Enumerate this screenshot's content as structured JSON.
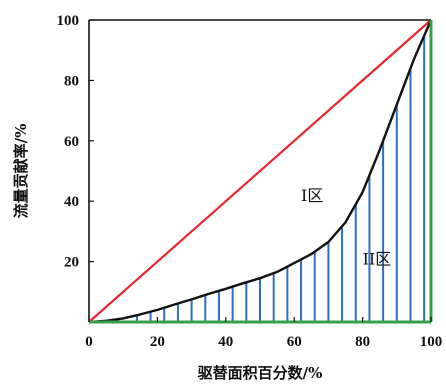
{
  "chart_data": {
    "type": "line",
    "xlabel": "驱替面积百分数/%",
    "ylabel": "流量贡献率/%",
    "xlim": [
      0,
      100
    ],
    "ylim": [
      0,
      100
    ],
    "x_ticks": [
      "0",
      "20",
      "40",
      "60",
      "80",
      "100"
    ],
    "y_ticks": [
      "20",
      "40",
      "60",
      "80",
      "100"
    ],
    "grid": false,
    "annotations": [
      {
        "text": "I区",
        "x": 62,
        "y": 40
      },
      {
        "text": "II区",
        "x": 80,
        "y": 19
      }
    ],
    "colors": {
      "diagonal": "#e8262d",
      "curve": "#111111",
      "hatch": "#2f6fc0",
      "bottom_axis": "#35a04a",
      "right_axis": "#35a04a",
      "frame": "#111111"
    },
    "series": [
      {
        "type": "diagonal",
        "x": [
          0,
          100
        ],
        "y": [
          0,
          100
        ]
      },
      {
        "type": "curve",
        "x": [
          0,
          5,
          10,
          15,
          20,
          25,
          30,
          35,
          40,
          45,
          50,
          55,
          60,
          65,
          70,
          75,
          80,
          85,
          90,
          95,
          100
        ],
        "y": [
          0,
          0.4,
          1.2,
          2.5,
          4.0,
          5.8,
          7.5,
          9.3,
          11.0,
          12.8,
          14.5,
          16.6,
          19.5,
          22.5,
          26.5,
          33.0,
          43.0,
          57.0,
          72.0,
          87.0,
          100
        ]
      }
    ],
    "hatch_x": [
      14,
      18,
      22,
      26,
      30,
      34,
      38,
      42,
      46,
      50,
      54,
      58,
      62,
      66,
      70,
      74,
      78,
      82,
      86,
      90,
      94,
      98
    ]
  }
}
